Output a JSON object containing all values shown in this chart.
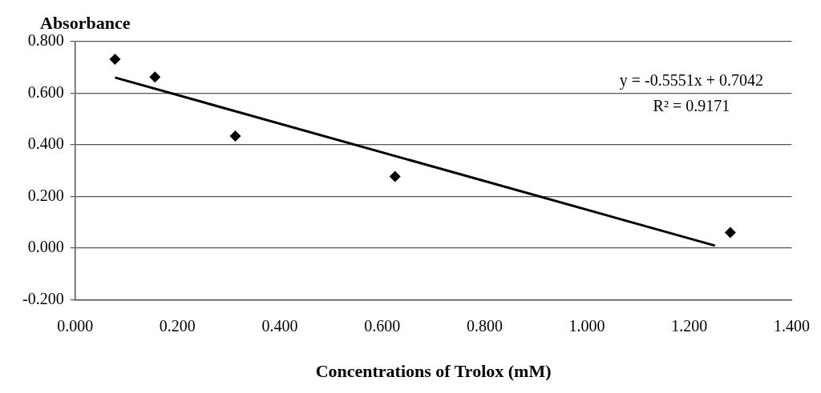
{
  "chart_data": {
    "type": "scatter",
    "xlabel": "Concentrations of Trolox (mM)",
    "ylabel": "Absorbance",
    "annotations": [
      "y = -0.5551x + 0.7042",
      "R² = 0.9171"
    ],
    "series": [
      {
        "type": "scatter",
        "color": "#000000",
        "marker": "diamond",
        "x": [
          0.078,
          0.156,
          0.313,
          0.625,
          1.28
        ],
        "values": [
          0.732,
          0.663,
          0.434,
          0.278,
          0.061
        ]
      },
      {
        "type": "line",
        "color": "#000000",
        "marker": "none",
        "line_style": "solid",
        "x": [
          0.078,
          1.25
        ],
        "values": [
          0.661,
          0.01
        ]
      }
    ],
    "xlim": [
      0,
      1.4
    ],
    "ylim": [
      -0.2,
      0.8
    ],
    "xticks": [
      {
        "value": 0,
        "label": "0.000"
      },
      {
        "value": 0.2,
        "label": "0.200"
      },
      {
        "value": 0.4,
        "label": "0.400"
      },
      {
        "value": 0.6,
        "label": "0.600"
      },
      {
        "value": 0.8,
        "label": "0.800"
      },
      {
        "value": 1,
        "label": "1.000"
      },
      {
        "value": 1.2,
        "label": "1.200"
      },
      {
        "value": 1.4,
        "label": "1.400"
      }
    ],
    "yticks": [
      {
        "value": -0.2,
        "label": "-0.200"
      },
      {
        "value": 0,
        "label": "0.000"
      },
      {
        "value": 0.2,
        "label": "0.200"
      },
      {
        "value": 0.4,
        "label": "0.400"
      },
      {
        "value": 0.6,
        "label": "0.600"
      },
      {
        "value": 0.8,
        "label": "0.800"
      }
    ],
    "grid": "y",
    "legend": false
  }
}
